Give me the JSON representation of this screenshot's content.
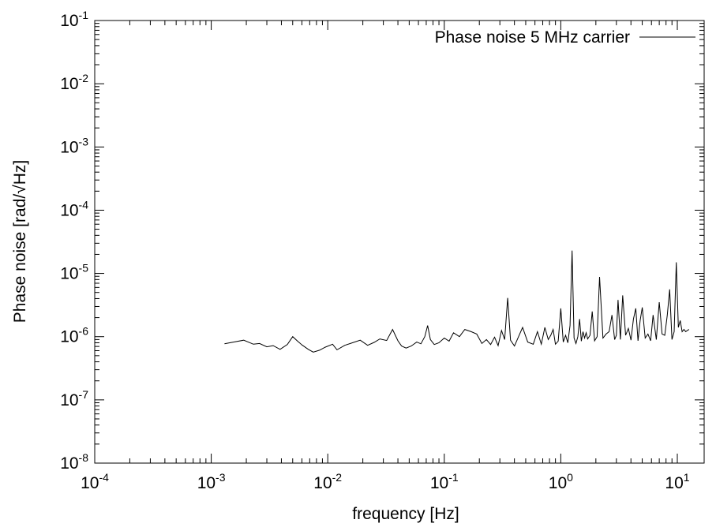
{
  "chart_data": {
    "type": "line",
    "title": "",
    "xlabel": "frequency [Hz]",
    "ylabel": "Phase noise [rad/√Hz]",
    "xscale": "log",
    "yscale": "log",
    "xlim": [
      0.0001,
      17
    ],
    "ylim": [
      1e-08,
      0.1
    ],
    "x_ticks": [
      {
        "value": 0.0001,
        "base": "10",
        "exp": "-4"
      },
      {
        "value": 0.001,
        "base": "10",
        "exp": "-3"
      },
      {
        "value": 0.01,
        "base": "10",
        "exp": "-2"
      },
      {
        "value": 0.1,
        "base": "10",
        "exp": "-1"
      },
      {
        "value": 1,
        "base": "10",
        "exp": "0"
      },
      {
        "value": 10,
        "base": "10",
        "exp": "1"
      }
    ],
    "y_ticks": [
      {
        "value": 1e-08,
        "base": "10",
        "exp": "-8"
      },
      {
        "value": 1e-07,
        "base": "10",
        "exp": "-7"
      },
      {
        "value": 1e-06,
        "base": "10",
        "exp": "-6"
      },
      {
        "value": 1e-05,
        "base": "10",
        "exp": "-5"
      },
      {
        "value": 0.0001,
        "base": "10",
        "exp": "-4"
      },
      {
        "value": 0.001,
        "base": "10",
        "exp": "-3"
      },
      {
        "value": 0.01,
        "base": "10",
        "exp": "-2"
      },
      {
        "value": 0.1,
        "base": "10",
        "exp": "-1"
      }
    ],
    "grid": false,
    "legend_position": "top-right",
    "series": [
      {
        "name": "Phase noise 5 MHz carrier",
        "color": "#000000",
        "x": [
          0.0013,
          0.0016,
          0.0019,
          0.0023,
          0.0026,
          0.003,
          0.0034,
          0.0039,
          0.0045,
          0.005,
          0.0055,
          0.006,
          0.0068,
          0.0075,
          0.0085,
          0.0095,
          0.011,
          0.012,
          0.014,
          0.016,
          0.019,
          0.022,
          0.025,
          0.028,
          0.032,
          0.036,
          0.04,
          0.043,
          0.047,
          0.052,
          0.058,
          0.063,
          0.068,
          0.072,
          0.076,
          0.082,
          0.09,
          0.1,
          0.11,
          0.12,
          0.135,
          0.15,
          0.17,
          0.19,
          0.21,
          0.23,
          0.25,
          0.27,
          0.29,
          0.31,
          0.33,
          0.35,
          0.37,
          0.4,
          0.43,
          0.47,
          0.52,
          0.58,
          0.63,
          0.68,
          0.73,
          0.78,
          0.82,
          0.86,
          0.9,
          0.95,
          1.0,
          1.05,
          1.1,
          1.15,
          1.2,
          1.25,
          1.3,
          1.35,
          1.4,
          1.45,
          1.5,
          1.55,
          1.6,
          1.65,
          1.7,
          1.78,
          1.86,
          1.95,
          2.05,
          2.15,
          2.3,
          2.45,
          2.6,
          2.75,
          2.9,
          3.0,
          3.1,
          3.25,
          3.4,
          3.6,
          3.8,
          4.0,
          4.2,
          4.4,
          4.6,
          4.8,
          5.0,
          5.3,
          5.6,
          5.9,
          6.2,
          6.6,
          7.0,
          7.4,
          7.8,
          8.2,
          8.6,
          9.0,
          9.4,
          9.8,
          10.2,
          10.6,
          11.0,
          11.4,
          11.8,
          12.2,
          12.6
        ],
        "y": [
          7.7e-07,
          8.3e-07,
          8.8e-07,
          7.6e-07,
          7.8e-07,
          6.9e-07,
          7.2e-07,
          6.3e-07,
          7.5e-07,
          1e-06,
          8.5e-07,
          7.4e-07,
          6.3e-07,
          5.7e-07,
          6.1e-07,
          6.8e-07,
          7.6e-07,
          6.2e-07,
          7.3e-07,
          7.9e-07,
          8.8e-07,
          7.3e-07,
          8.1e-07,
          9.2e-07,
          8.7e-07,
          1.3e-06,
          8.6e-07,
          7.1e-07,
          6.6e-07,
          7.1e-07,
          8.2e-07,
          7.7e-07,
          1e-06,
          1.5e-06,
          9e-07,
          7.5e-07,
          8e-07,
          9.5e-07,
          8.5e-07,
          1.15e-06,
          1e-06,
          1.3e-06,
          1.2e-06,
          1.1e-06,
          7.8e-07,
          9e-07,
          7.5e-07,
          9.8e-07,
          7.2e-07,
          1.25e-06,
          9e-07,
          4.1e-06,
          8.8e-07,
          7.1e-07,
          9.6e-07,
          1.4e-06,
          8.2e-07,
          7.6e-07,
          1.2e-06,
          7.6e-07,
          1.4e-06,
          9e-07,
          1.05e-06,
          1.3e-06,
          7.6e-07,
          8.5e-07,
          2.8e-06,
          8.2e-07,
          1.05e-06,
          8e-07,
          1.5e-06,
          2.3e-05,
          9.5e-07,
          7.8e-07,
          1e-06,
          1.9e-06,
          8.5e-07,
          1.2e-06,
          9.5e-07,
          1.15e-06,
          9.2e-07,
          1.05e-06,
          2.5e-06,
          8.6e-07,
          1e-06,
          8.8e-06,
          9.5e-07,
          1.1e-06,
          1.2e-06,
          2.2e-06,
          9e-07,
          1.05e-06,
          3.8e-06,
          9e-07,
          4.5e-06,
          1.05e-06,
          1.35e-06,
          8.8e-07,
          1.9e-06,
          2.8e-06,
          8.6e-07,
          1.8e-06,
          2.9e-06,
          9.5e-07,
          1.1e-06,
          8.6e-07,
          2.2e-06,
          9e-07,
          3.5e-06,
          1.1e-06,
          1.05e-06,
          2.2e-06,
          5.6e-06,
          9e-07,
          1.2e-06,
          1.5e-05,
          1.4e-06,
          1.8e-06,
          1.2e-06,
          1.3e-06,
          1.2e-06,
          1.25e-06,
          1.3e-06
        ]
      }
    ]
  }
}
